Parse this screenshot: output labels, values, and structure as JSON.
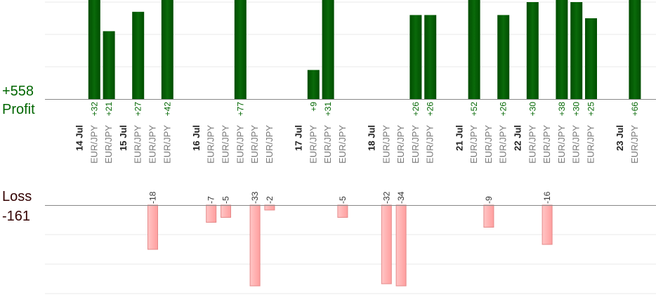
{
  "colors": {
    "profit": "#006600",
    "profit_bar": "#0a6a0a",
    "loss_text": "#330000",
    "loss_bar_fill": "#ffb3b3",
    "loss_bar_stroke": "#e58a8a",
    "axis": "#888888",
    "grid": "#e8e8e8",
    "category_text": "#777777",
    "date_text": "#222222"
  },
  "summary": {
    "profit_total": "+558",
    "profit_label": "Profit",
    "loss_label": "Loss",
    "loss_total": "-161"
  },
  "chart_data": {
    "type": "bar",
    "dates": [
      {
        "label": "14 Jul",
        "slot": 0
      },
      {
        "label": "15 Jul",
        "slot": 3
      },
      {
        "label": "16 Jul",
        "slot": 8
      },
      {
        "label": "17 Jul",
        "slot": 15
      },
      {
        "label": "18 Jul",
        "slot": 20
      },
      {
        "label": "21 Jul",
        "slot": 26
      },
      {
        "label": "22 Jul",
        "slot": 30
      },
      {
        "label": "23 Jul",
        "slot": 37
      }
    ],
    "trades": [
      {
        "slot": 1,
        "symbol": "EUR/JPY",
        "pnl": 32
      },
      {
        "slot": 2,
        "symbol": "EUR/JPY",
        "pnl": 21
      },
      {
        "slot": 4,
        "symbol": "EUR/JPY",
        "pnl": 27
      },
      {
        "slot": 5,
        "symbol": "EUR/JPY",
        "pnl": -18
      },
      {
        "slot": 6,
        "symbol": "EUR/JPY",
        "pnl": 42
      },
      {
        "slot": 9,
        "symbol": "EUR/JPY",
        "pnl": -7
      },
      {
        "slot": 10,
        "symbol": "EUR/JPY",
        "pnl": -5
      },
      {
        "slot": 11,
        "symbol": "EUR/JPY",
        "pnl": 77
      },
      {
        "slot": 12,
        "symbol": "EUR/JPY",
        "pnl": -33
      },
      {
        "slot": 13,
        "symbol": "EUR/JPY",
        "pnl": -2
      },
      {
        "slot": 16,
        "symbol": "EUR/JPY",
        "pnl": 9
      },
      {
        "slot": 17,
        "symbol": "EUR/JPY",
        "pnl": 31
      },
      {
        "slot": 18,
        "symbol": "EUR/JPY",
        "pnl": -5
      },
      {
        "slot": 21,
        "symbol": "EUR/JPY",
        "pnl": -32
      },
      {
        "slot": 22,
        "symbol": "EUR/JPY",
        "pnl": -34
      },
      {
        "slot": 23,
        "symbol": "EUR/JPY",
        "pnl": 26
      },
      {
        "slot": 24,
        "symbol": "EUR/JPY",
        "pnl": 26
      },
      {
        "slot": 27,
        "symbol": "EUR/JPY",
        "pnl": 52
      },
      {
        "slot": 28,
        "symbol": "EUR/JPY",
        "pnl": -9
      },
      {
        "slot": 29,
        "symbol": "EUR/JPY",
        "pnl": 26
      },
      {
        "slot": 31,
        "symbol": "EUR/JPY",
        "pnl": 30
      },
      {
        "slot": 32,
        "symbol": "EUR/JPY",
        "pnl": -16
      },
      {
        "slot": 33,
        "symbol": "EUR/JPY",
        "pnl": 38
      },
      {
        "slot": 34,
        "symbol": "EUR/JPY",
        "pnl": 30
      },
      {
        "slot": 35,
        "symbol": "EUR/JPY",
        "pnl": 25
      },
      {
        "slot": 38,
        "symbol": "EUR/JPY",
        "pnl": 66
      }
    ],
    "profit_axis_max": 30,
    "loss_axis_max": 28,
    "profit_gridlines": [
      10,
      20,
      30
    ],
    "loss_gridlines": [
      10,
      20,
      30
    ],
    "grid": true
  }
}
